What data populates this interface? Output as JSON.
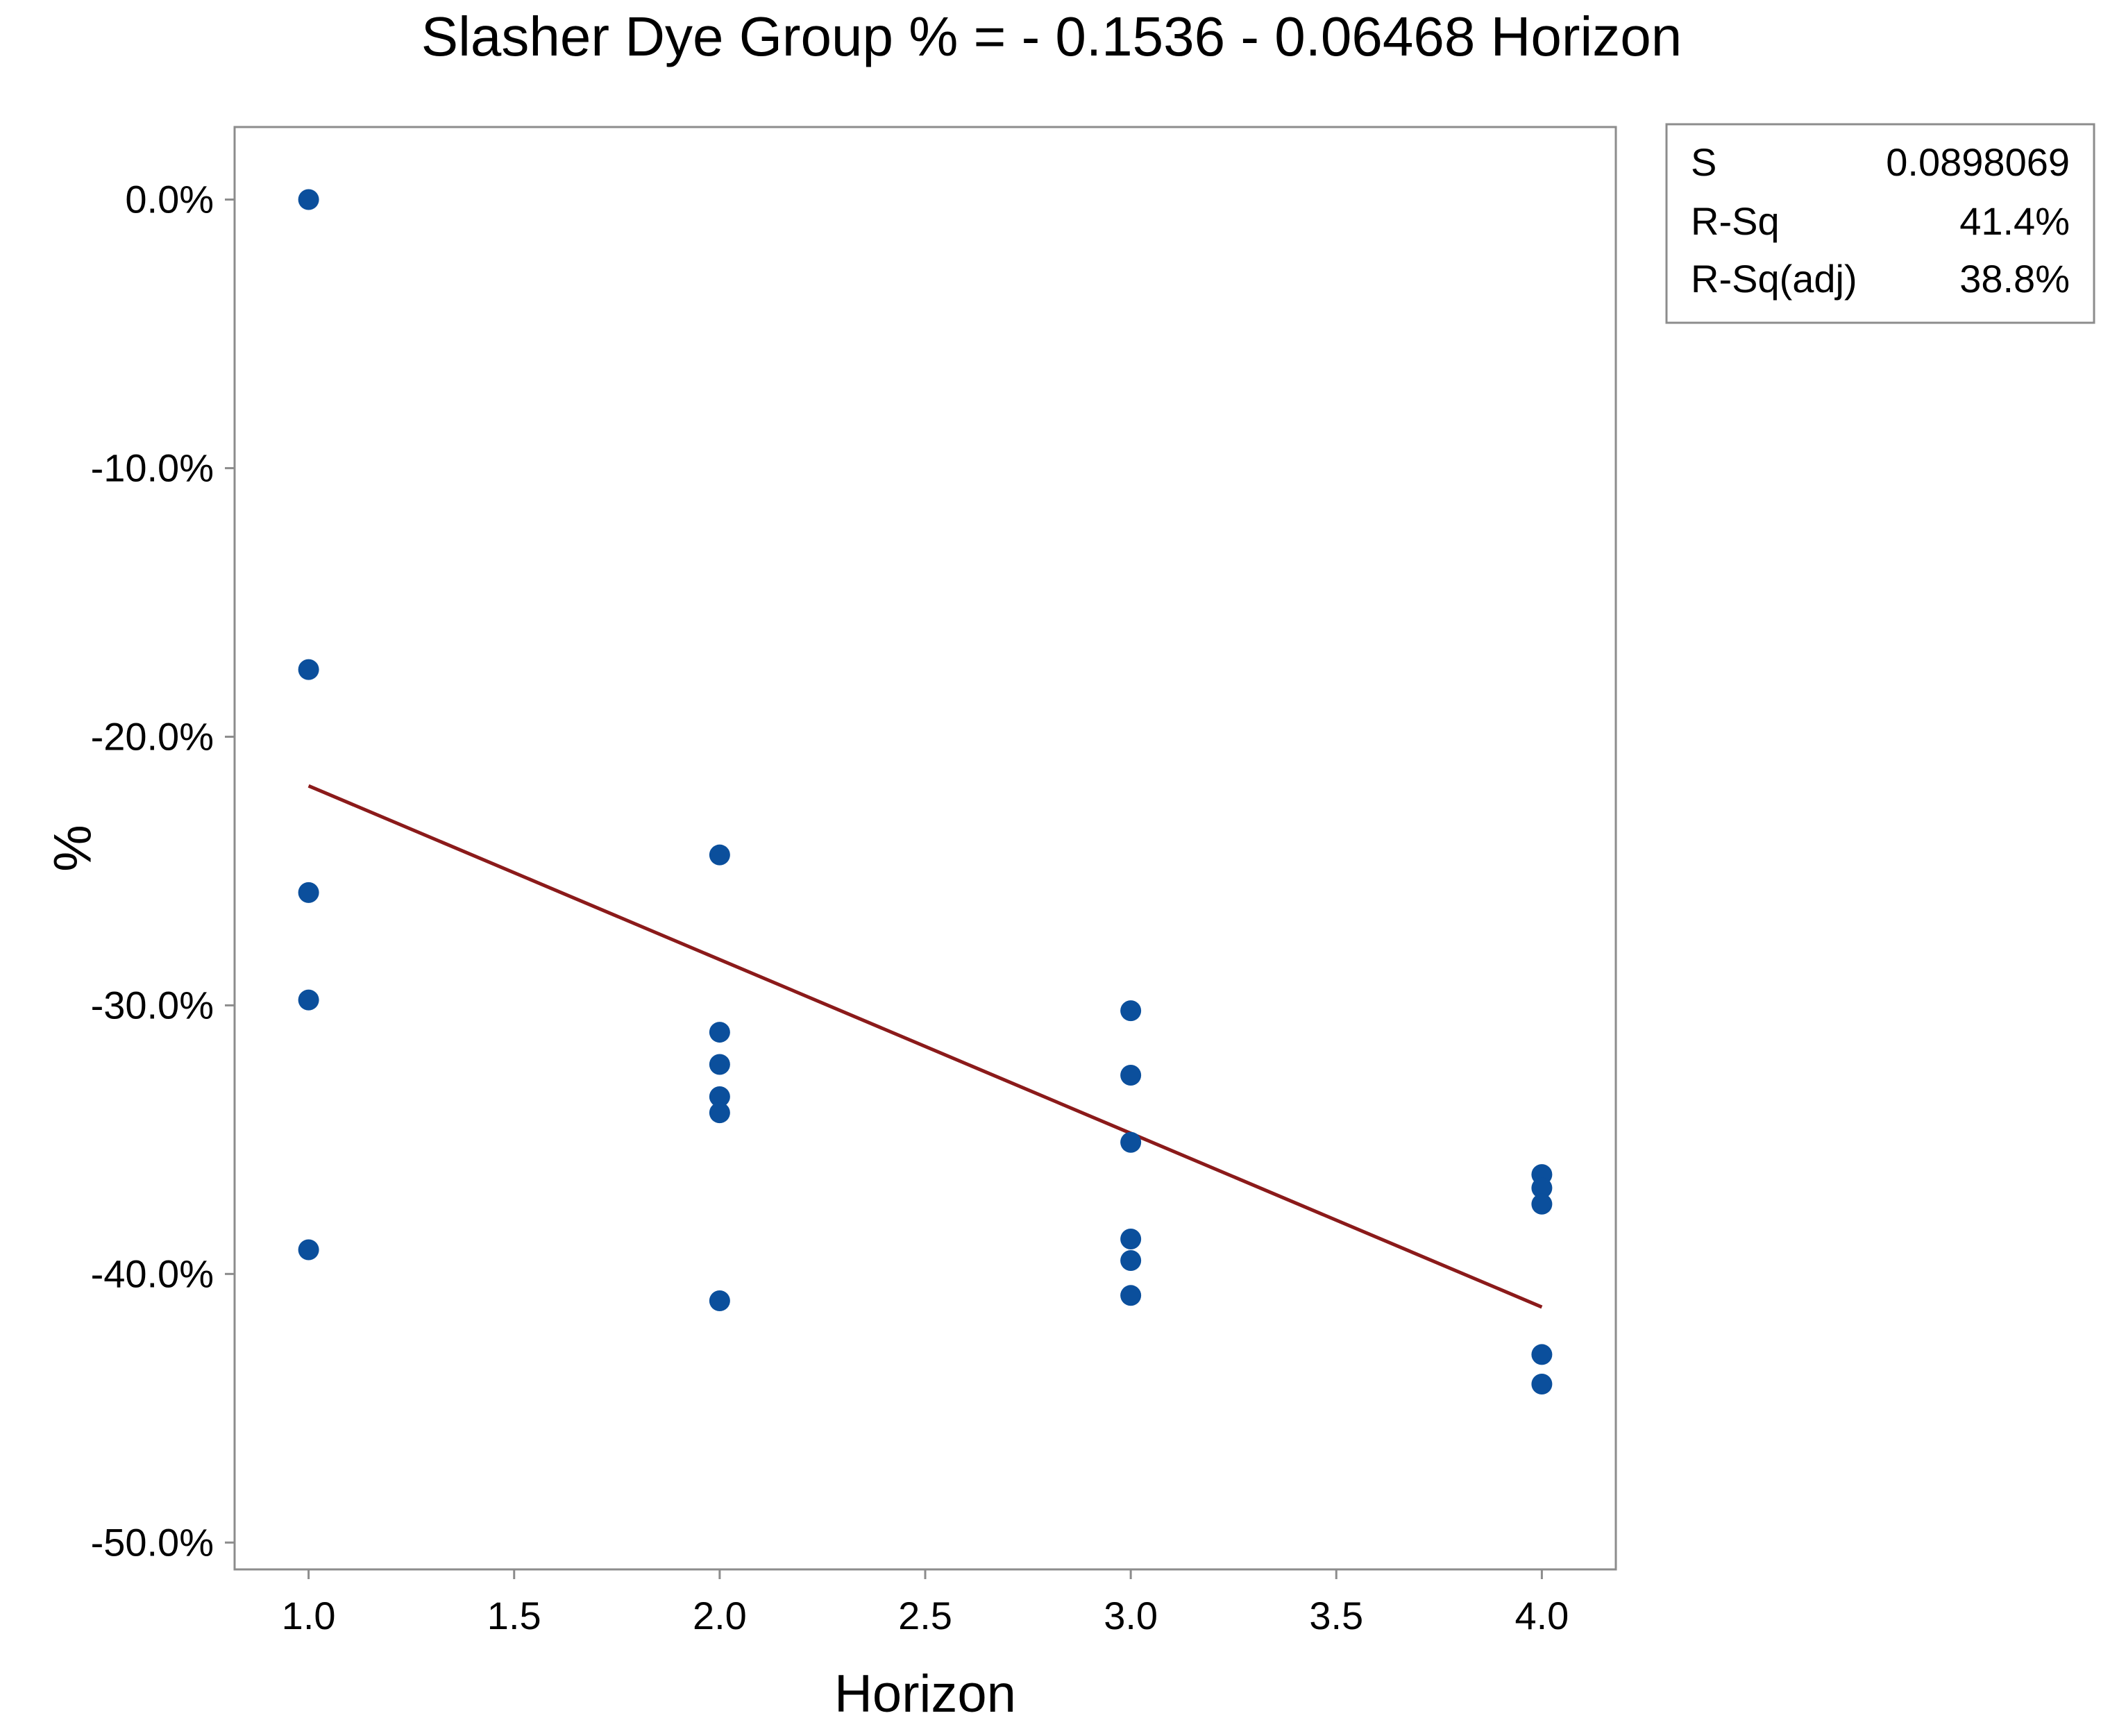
{
  "chart_data": {
    "type": "scatter",
    "title": "Slasher Dye Group % = - 0.1536 - 0.06468 Horizon",
    "xlabel": "Horizon",
    "ylabel": "%",
    "xlim": [
      0.82,
      4.18
    ],
    "ylim": [
      -0.51,
      0.027
    ],
    "x_ticks": [
      1.0,
      1.5,
      2.0,
      2.5,
      3.0,
      3.5,
      4.0
    ],
    "x_tick_labels": [
      "1.0",
      "1.5",
      "2.0",
      "2.5",
      "3.0",
      "3.5",
      "4.0"
    ],
    "y_ticks": [
      0.0,
      -0.1,
      -0.2,
      -0.3,
      -0.4,
      -0.5
    ],
    "y_tick_labels": [
      "0.0%",
      "-10.0%",
      "-20.0%",
      "-30.0%",
      "-40.0%",
      "-50.0%"
    ],
    "grid": false,
    "points": [
      {
        "x": 1,
        "y": 0.0
      },
      {
        "x": 1,
        "y": -0.175
      },
      {
        "x": 1,
        "y": -0.258
      },
      {
        "x": 1,
        "y": -0.298
      },
      {
        "x": 1,
        "y": -0.391
      },
      {
        "x": 2,
        "y": -0.244
      },
      {
        "x": 2,
        "y": -0.31
      },
      {
        "x": 2,
        "y": -0.322
      },
      {
        "x": 2,
        "y": -0.334
      },
      {
        "x": 2,
        "y": -0.34
      },
      {
        "x": 2,
        "y": -0.41
      },
      {
        "x": 3,
        "y": -0.302
      },
      {
        "x": 3,
        "y": -0.326
      },
      {
        "x": 3,
        "y": -0.351
      },
      {
        "x": 3,
        "y": -0.387
      },
      {
        "x": 3,
        "y": -0.395
      },
      {
        "x": 3,
        "y": -0.408
      },
      {
        "x": 4,
        "y": -0.363
      },
      {
        "x": 4,
        "y": -0.368
      },
      {
        "x": 4,
        "y": -0.374
      },
      {
        "x": 4,
        "y": -0.43
      },
      {
        "x": 4,
        "y": -0.441
      }
    ],
    "fit_line": {
      "intercept": -0.1536,
      "slope": -0.06468,
      "x_range": [
        1,
        4
      ]
    },
    "colors": {
      "points": "#0b4f9c",
      "fit_line": "#8b1a1a"
    },
    "legend_position": "top-right",
    "stats": [
      {
        "label": "S",
        "value": "0.0898069"
      },
      {
        "label": "R-Sq",
        "value": "41.4%"
      },
      {
        "label": "R-Sq(adj)",
        "value": "38.8%"
      }
    ]
  }
}
